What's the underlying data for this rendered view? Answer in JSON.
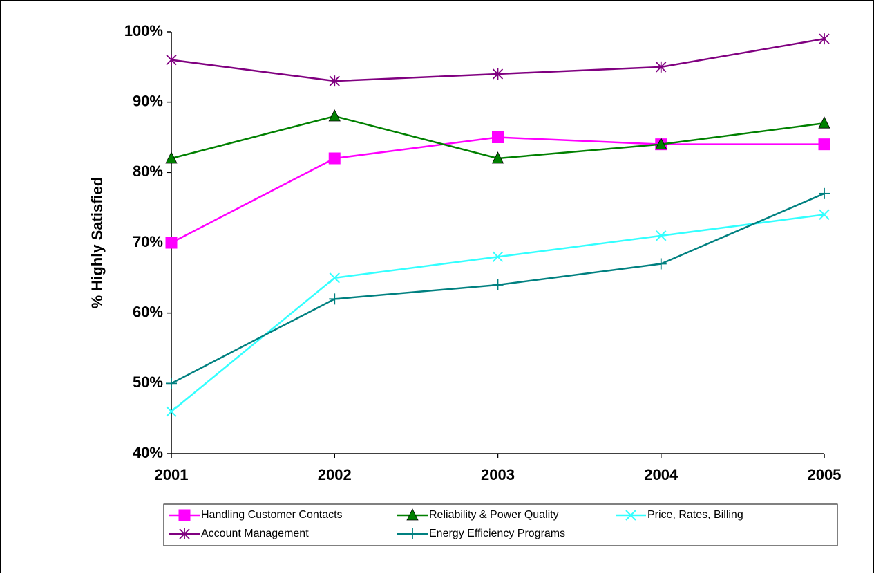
{
  "chart_data": {
    "type": "line",
    "title": "",
    "xlabel": "",
    "ylabel": "% Highly Satisfied",
    "x": [
      "2001",
      "2002",
      "2003",
      "2004",
      "2005"
    ],
    "ylim": [
      40,
      100
    ],
    "yticks": [
      "40%",
      "50%",
      "60%",
      "70%",
      "80%",
      "90%",
      "100%"
    ],
    "grid": false,
    "legend_position": "bottom",
    "series": [
      {
        "name": "Handling Customer Contacts",
        "values": [
          70,
          82,
          85,
          84,
          84
        ],
        "color": "#ff00ff",
        "marker": "square"
      },
      {
        "name": "Reliability & Power Quality",
        "values": [
          82,
          88,
          82,
          84,
          87
        ],
        "color": "#008000",
        "marker": "triangle"
      },
      {
        "name": "Price, Rates, Billing",
        "values": [
          46,
          65,
          68,
          71,
          74
        ],
        "color": "#33ffff",
        "marker": "x"
      },
      {
        "name": "Account Management",
        "values": [
          96,
          93,
          94,
          95,
          99
        ],
        "color": "#800080",
        "marker": "star"
      },
      {
        "name": "Energy Efficiency Programs",
        "values": [
          50,
          62,
          64,
          67,
          77
        ],
        "color": "#008080",
        "marker": "plus"
      }
    ]
  }
}
